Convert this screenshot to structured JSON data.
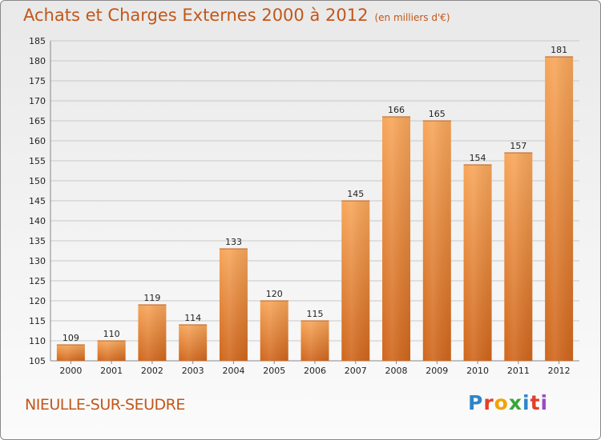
{
  "header": {
    "title": "Achats et Charges Externes 2000 à 2012",
    "subtitle": "(en milliers d'€)"
  },
  "footer": {
    "commune": "NIEULLE-SUR-SEUDRE",
    "logo": "Proxiti"
  },
  "chart_data": {
    "type": "bar",
    "title": "Achats et Charges Externes 2000 à 2012",
    "subtitle": "(en milliers d'€)",
    "categories": [
      "2000",
      "2001",
      "2002",
      "2003",
      "2004",
      "2005",
      "2006",
      "2007",
      "2008",
      "2009",
      "2010",
      "2011",
      "2012"
    ],
    "values": [
      109,
      110,
      119,
      114,
      133,
      120,
      115,
      145,
      166,
      165,
      154,
      157,
      181
    ],
    "ylim": [
      105,
      185
    ],
    "yticks": [
      105,
      110,
      115,
      120,
      125,
      130,
      135,
      140,
      145,
      150,
      155,
      160,
      165,
      170,
      175,
      180,
      185
    ],
    "grid": true,
    "colors": {
      "bar_top": "#f7a65a",
      "bar_bottom": "#d0661c",
      "grid": "#c8c8c8",
      "text": "#222222",
      "accent": "#c2571a"
    }
  }
}
